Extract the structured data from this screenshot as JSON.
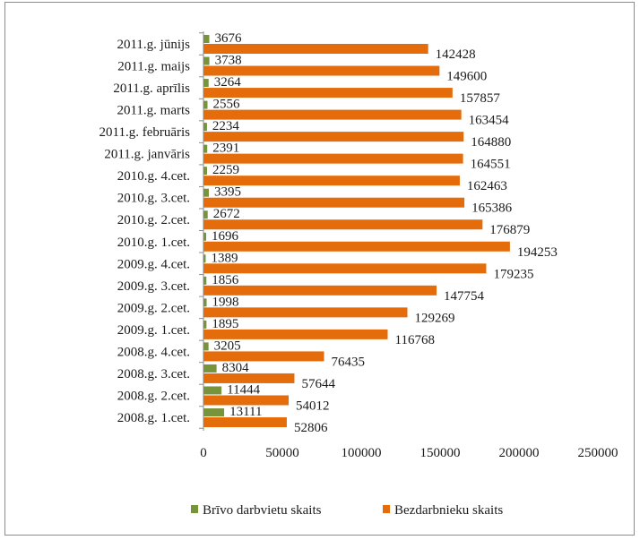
{
  "chart_data": {
    "type": "bar",
    "orientation": "horizontal",
    "categories": [
      "2008.g. 1.cet.",
      "2008.g. 2.cet.",
      "2008.g. 3.cet.",
      "2008.g. 4.cet.",
      "2009.g. 1.cet.",
      "2009.g. 2.cet.",
      "2009.g. 3.cet.",
      "2009.g. 4.cet.",
      "2010.g. 1.cet.",
      "2010.g. 2.cet.",
      "2010.g. 3.cet.",
      "2010.g. 4.cet.",
      "2011.g. janvāris",
      "2011.g. februāris",
      "2011.g. marts",
      "2011.g. aprīlis",
      "2011.g. maijs",
      "2011.g. jūnijs"
    ],
    "series": [
      {
        "name": "Brīvo darbvietu skaits",
        "color": "#77933c",
        "values": [
          13111,
          11444,
          8304,
          3205,
          1895,
          1998,
          1856,
          1389,
          1696,
          2672,
          3395,
          2259,
          2391,
          2234,
          2556,
          3264,
          3738,
          3676
        ]
      },
      {
        "name": "Bezdarbnieku skaits",
        "color": "#e46c0a",
        "values": [
          52806,
          54012,
          57644,
          76435,
          116768,
          129269,
          147754,
          179235,
          194253,
          176879,
          165386,
          162463,
          164551,
          164880,
          163454,
          157857,
          149600,
          142428
        ]
      }
    ],
    "x_ticks": [
      "0",
      "50000",
      "100000",
      "150000",
      "200000",
      "250000"
    ],
    "xlim": [
      0,
      250000
    ],
    "grid": false,
    "legend_position": "bottom",
    "title": "",
    "xlabel": "",
    "ylabel": ""
  }
}
